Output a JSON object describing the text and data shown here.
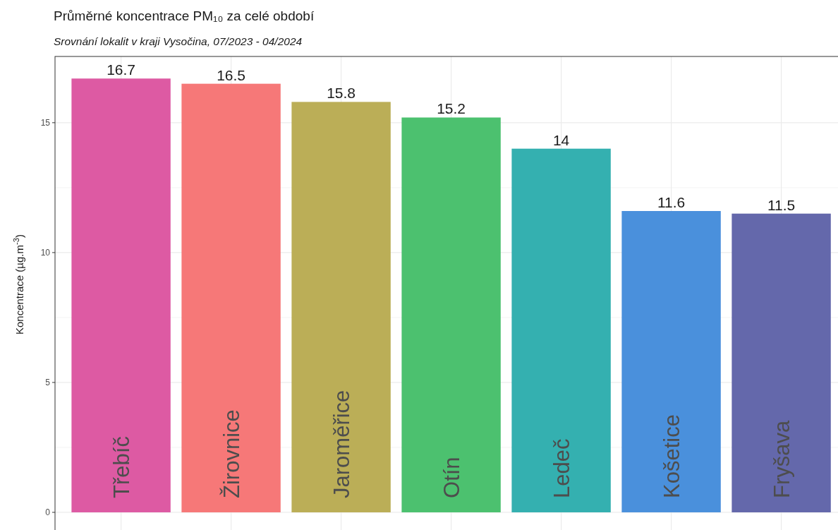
{
  "chart_data": {
    "type": "bar",
    "title": "Průměrné koncentrace PM₁₀ za celé období",
    "subtitle": "Srovnání lokalit v kraji Vysočina, 07/2023 - 04/2024",
    "ylabel": "Koncentrace (µg.m$^{-3}$)",
    "categories": [
      "Třebíč",
      "Žirovnice",
      "Jaroměřice",
      "Otín",
      "Ledeč",
      "Košetice",
      "Fryšava"
    ],
    "values": [
      16.7,
      16.5,
      15.8,
      15.2,
      14,
      11.6,
      11.5
    ],
    "colors": [
      "#dd5aa3",
      "#f67878",
      "#bbae57",
      "#4cc16f",
      "#34b0b0",
      "#4a90dc",
      "#6468ab"
    ],
    "ylim": [
      -0.68,
      17.55
    ],
    "yticks": [
      0,
      5,
      10,
      15
    ],
    "grid": true,
    "data_labels": true
  }
}
